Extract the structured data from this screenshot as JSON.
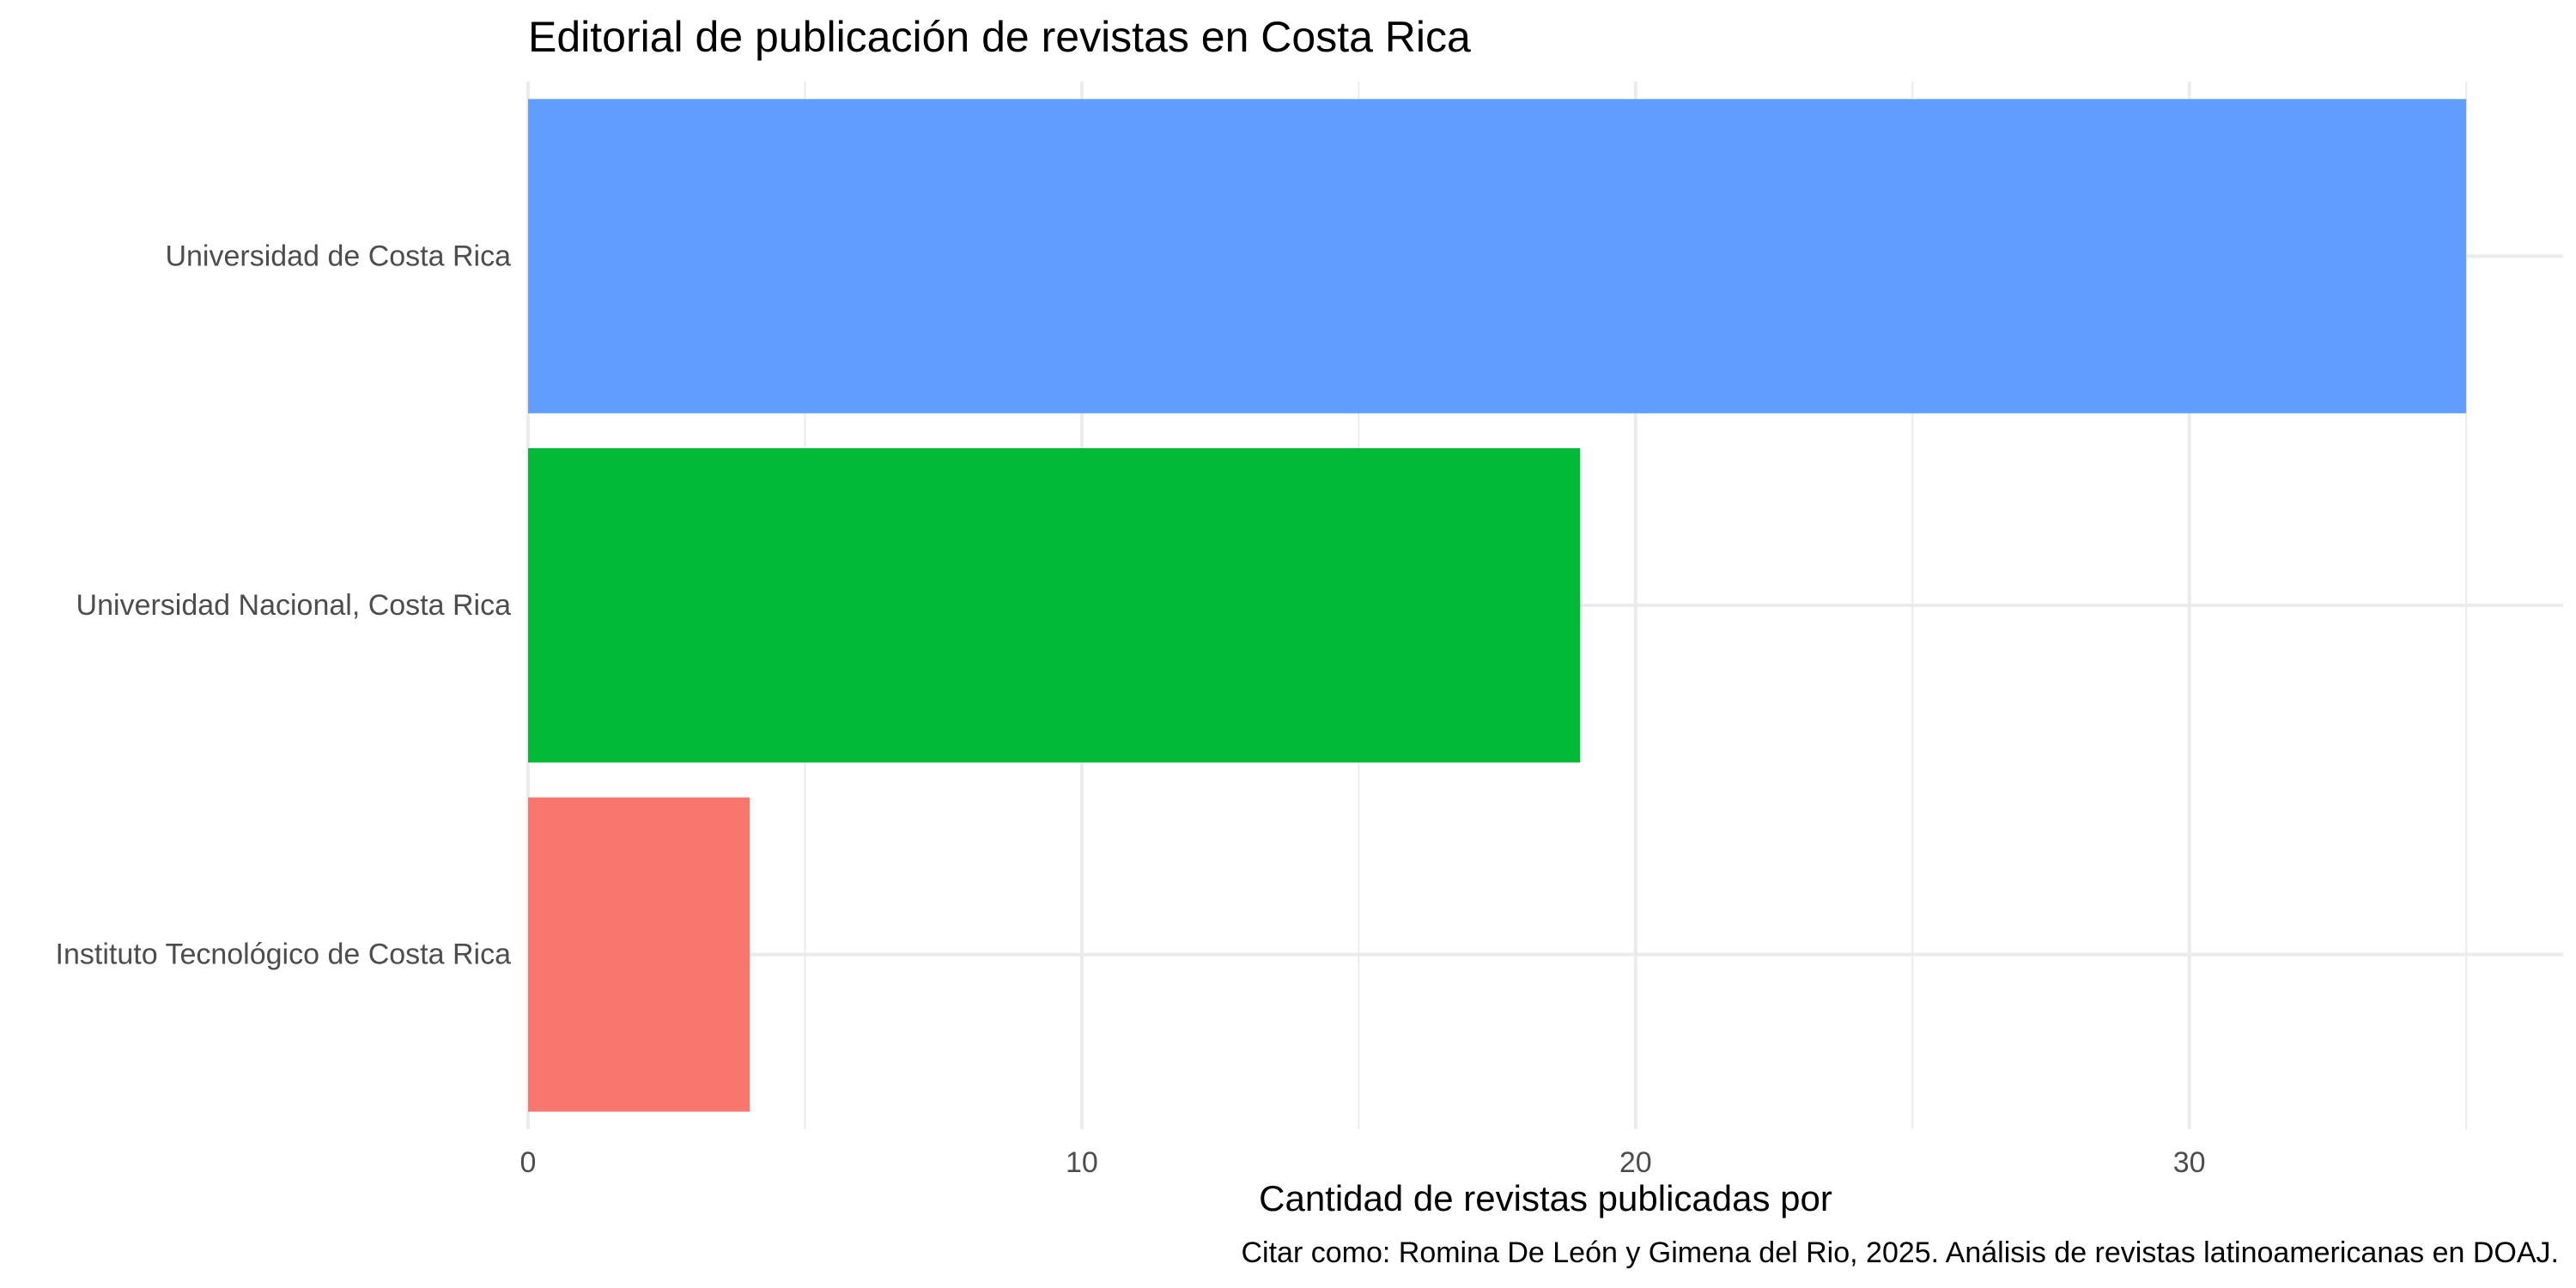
{
  "chart_data": {
    "type": "bar",
    "orientation": "horizontal",
    "title": "Editorial de publicación de revistas en Costa Rica",
    "xlabel": "Cantidad de revistas publicadas por",
    "ylabel": "",
    "caption": "Citar como: Romina De León y Gimena del Rio, 2025. Análisis de revistas latinoamericanas en DOAJ.",
    "categories": [
      "Universidad de Costa Rica",
      "Universidad Nacional, Costa Rica",
      "Instituto Tecnológico de Costa Rica"
    ],
    "values": [
      35,
      19,
      4
    ],
    "colors": [
      "#619CFF",
      "#00BA38",
      "#F8766D"
    ],
    "xlim": [
      0,
      36.75
    ],
    "xticks": [
      0,
      10,
      20,
      30
    ],
    "xticks_minor": [
      5,
      15,
      25,
      35
    ],
    "grid": true,
    "legend": "none"
  }
}
